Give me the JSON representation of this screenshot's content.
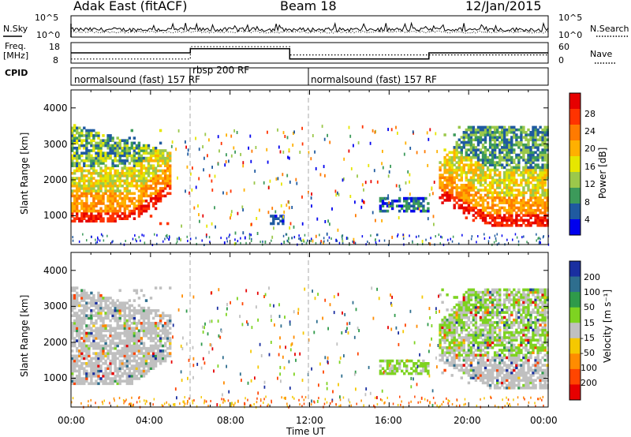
{
  "header": {
    "station": "Adak East (fitACF)",
    "beam": "Beam 18",
    "date": "12/Jan/2015"
  },
  "top_panels": {
    "nsky_label": "N.Sky",
    "nsearch_label": "N.Search",
    "freq_label_line1": "Freq.",
    "freq_label_line2": "[MHz]",
    "nave_label": "Nave",
    "cpid_label": "CPID",
    "left_ticks_count": [
      "10^5",
      "10^0"
    ],
    "right_ticks_count": [
      "10^5",
      "10^0"
    ],
    "left_ticks_freq": [
      "18",
      "8"
    ],
    "right_ticks_freq": [
      "60",
      "0"
    ]
  },
  "cpid_segments": [
    {
      "label": "normalsound (fast) 157 RF",
      "start_hour": 0
    },
    {
      "label": "rbsp 200 RF",
      "start_hour": 6
    },
    {
      "label": "normalsound (fast) 157 RF",
      "start_hour": 12
    }
  ],
  "axes": {
    "xlabel": "Time UT",
    "x_ticks": [
      "00:00",
      "04:00",
      "08:00",
      "12:00",
      "16:00",
      "20:00",
      "00:00"
    ],
    "ylabel": "Slant Range [km]",
    "y_ticks": [
      "4000",
      "3000",
      "2000",
      "1000"
    ]
  },
  "colorbars": {
    "power": {
      "label": "Power [dB]",
      "ticks": [
        "28",
        "24",
        "20",
        "16",
        "12",
        "8",
        "4"
      ],
      "colors": [
        "#e60000",
        "#ff3300",
        "#ff7a00",
        "#ffb000",
        "#e6e600",
        "#9bc84b",
        "#3c9a5a",
        "#1f5aa0",
        "#0000ee"
      ]
    },
    "velocity": {
      "label": "Velocity [m s⁻¹]",
      "ticks": [
        "200",
        "100",
        "50",
        "15",
        "-15",
        "-50",
        "-100",
        "-200"
      ],
      "colors": [
        "#1a2fa0",
        "#2e6e8e",
        "#2f9a4a",
        "#7ed321",
        "#c0c0c0",
        "#f5c800",
        "#ff8c00",
        "#ff4500",
        "#e60000"
      ]
    }
  },
  "chart_data": [
    {
      "type": "line",
      "title": "N.Sky / N.Search",
      "x_range_hours": [
        0,
        24
      ],
      "y_scale": "log",
      "ylim": [
        "10^0",
        "10^5"
      ],
      "series": [
        {
          "name": "N.Sky",
          "style": "solid"
        },
        {
          "name": "N.Search",
          "style": "dotted"
        }
      ]
    },
    {
      "type": "line",
      "title": "Freq. / Nave",
      "x_range_hours": [
        0,
        24
      ],
      "series": [
        {
          "name": "Freq. [MHz]",
          "style": "solid",
          "points": [
            [
              0,
              13
            ],
            [
              6,
              13
            ],
            [
              6,
              15
            ],
            [
              11,
              15
            ],
            [
              11,
              10
            ],
            [
              18,
              10
            ],
            [
              18,
              13
            ],
            [
              24,
              13
            ]
          ]
        },
        {
          "name": "Nave",
          "style": "dotted",
          "points": [
            [
              0,
              10
            ],
            [
              6,
              10
            ],
            [
              6,
              16
            ],
            [
              11,
              16
            ],
            [
              11,
              12
            ],
            [
              24,
              12
            ]
          ]
        }
      ]
    },
    {
      "type": "heatmap",
      "title": "Power [dB]",
      "x_range_hours": [
        0,
        24
      ],
      "ylim": [
        200,
        4500
      ],
      "zlim": [
        0,
        32
      ],
      "regions": [
        {
          "x_start_hour": 0.0,
          "x_end_hour": 5.0,
          "y_min_km": 750,
          "y_max_km": 3500,
          "power_db": "4-32"
        },
        {
          "x_start_hour": 18.5,
          "x_end_hour": 24.0,
          "y_min_km": 700,
          "y_max_km": 3500,
          "power_db": "4-32"
        },
        {
          "x_start_hour": 15.5,
          "x_end_hour": 18.0,
          "y_min_km": 1100,
          "y_max_km": 1500,
          "power_db": "4-12"
        },
        {
          "x_start_hour": 10.0,
          "x_end_hour": 10.7,
          "y_min_km": 750,
          "y_max_km": 1000,
          "power_db": "4-8"
        }
      ]
    },
    {
      "type": "heatmap",
      "title": "Velocity [m s⁻¹]",
      "x_range_hours": [
        0,
        24
      ],
      "ylim": [
        200,
        4500
      ],
      "zlim": [
        -200,
        200
      ],
      "regions": [
        {
          "x_start_hour": 0.0,
          "x_end_hour": 5.0,
          "y_min_km": 750,
          "y_max_km": 3500,
          "velocity_ms": "-15 to 15"
        },
        {
          "x_start_hour": 18.5,
          "x_end_hour": 24.0,
          "y_min_km": 700,
          "y_max_km": 3500,
          "velocity_ms": "-15 to 50"
        },
        {
          "x_start_hour": 15.5,
          "x_end_hour": 18.0,
          "y_min_km": 1100,
          "y_max_km": 1500,
          "velocity_ms": "15 to 50"
        }
      ]
    }
  ]
}
